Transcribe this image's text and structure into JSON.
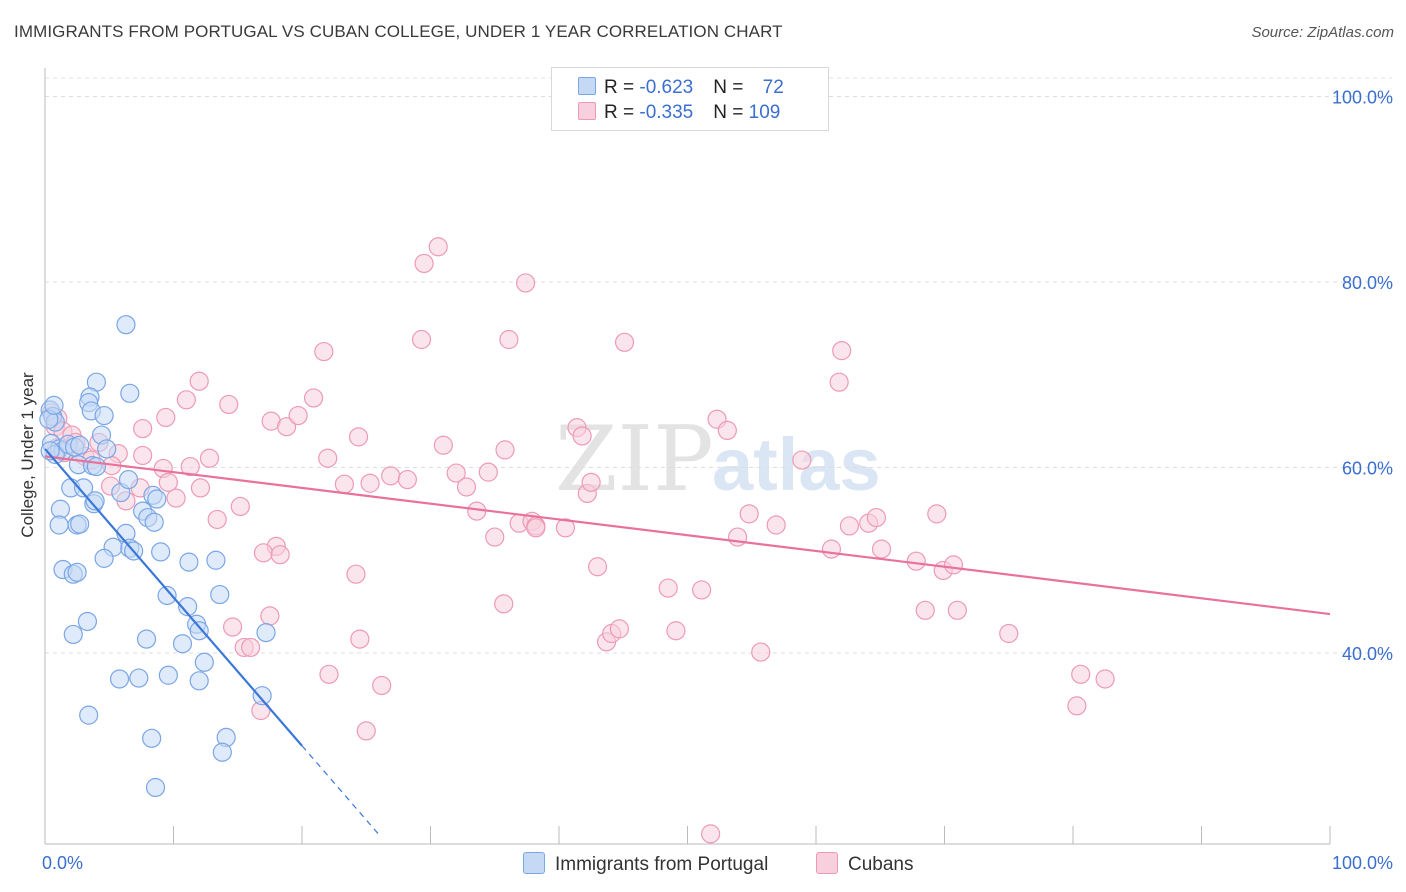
{
  "header": {
    "title": "IMMIGRANTS FROM PORTUGAL VS CUBAN COLLEGE, UNDER 1 YEAR CORRELATION CHART",
    "source": "Source: ZipAtlas.com"
  },
  "watermark": {
    "zip": "ZIP",
    "atlas": "atlas"
  },
  "legend_top": {
    "rows": [
      {
        "r_label": "R = ",
        "r_value": "-0.623",
        "n_label": "N = ",
        "n_value": "72"
      },
      {
        "r_label": "R = ",
        "r_value": "-0.335",
        "n_label": "N = ",
        "n_value": "109"
      }
    ]
  },
  "colors": {
    "portugal_fill": "#c5d9f5",
    "portugal_stroke": "#7aa6e6",
    "portugal_line": "#3b78d8",
    "cuban_fill": "#f8cfdc",
    "cuban_stroke": "#ee9ab5",
    "cuban_line": "#e8729a",
    "axis_value": "#3a6fd0",
    "grid": "#dddddd"
  },
  "chart_data": {
    "type": "scatter",
    "title": "IMMIGRANTS FROM PORTUGAL VS CUBAN COLLEGE, UNDER 1 YEAR CORRELATION CHART",
    "xlabel": "",
    "ylabel": "College, Under 1 year",
    "xlim": [
      0,
      100
    ],
    "ylim": [
      20,
      102
    ],
    "x_tick_labels": [
      "0.0%",
      "100.0%"
    ],
    "y_ticks": [
      {
        "value": 100,
        "label": "100.0%"
      },
      {
        "value": 80,
        "label": "80.0%"
      },
      {
        "value": 60,
        "label": "60.0%"
      },
      {
        "value": 40,
        "label": "40.0%"
      }
    ],
    "legend": [
      "Immigrants from Portugal",
      "Cubans"
    ],
    "series": [
      {
        "name": "Immigrants from Portugal",
        "r": -0.623,
        "n": 72,
        "trend": {
          "x0": 0,
          "y0": 62.0,
          "x1": 20,
          "y1": 30.0,
          "dash_to_x": 26
        },
        "points": [
          [
            0.4,
            66.2
          ],
          [
            0.6,
            65.5
          ],
          [
            0.8,
            64.9
          ],
          [
            0.5,
            62.6
          ],
          [
            1.1,
            62.0
          ],
          [
            1.4,
            61.8
          ],
          [
            0.8,
            61.4
          ],
          [
            1.8,
            62.5
          ],
          [
            2.3,
            62.2
          ],
          [
            2.6,
            60.3
          ],
          [
            3.7,
            60.2
          ],
          [
            4.0,
            60.1
          ],
          [
            2.0,
            57.8
          ],
          [
            3.0,
            57.8
          ],
          [
            5.9,
            57.3
          ],
          [
            3.8,
            56.1
          ],
          [
            3.9,
            56.4
          ],
          [
            6.5,
            58.7
          ],
          [
            8.4,
            57.0
          ],
          [
            8.7,
            56.6
          ],
          [
            7.6,
            55.3
          ],
          [
            1.2,
            55.5
          ],
          [
            8.0,
            54.6
          ],
          [
            8.5,
            54.1
          ],
          [
            1.1,
            53.8
          ],
          [
            2.5,
            53.8
          ],
          [
            2.7,
            53.9
          ],
          [
            6.3,
            52.9
          ],
          [
            5.3,
            51.4
          ],
          [
            6.6,
            51.3
          ],
          [
            6.9,
            51.0
          ],
          [
            9.0,
            50.9
          ],
          [
            4.6,
            50.2
          ],
          [
            11.2,
            49.8
          ],
          [
            13.3,
            50.0
          ],
          [
            1.4,
            49.0
          ],
          [
            2.2,
            48.5
          ],
          [
            2.5,
            48.7
          ],
          [
            9.5,
            46.2
          ],
          [
            13.6,
            46.3
          ],
          [
            11.1,
            45.0
          ],
          [
            3.3,
            43.4
          ],
          [
            11.8,
            43.1
          ],
          [
            12.0,
            42.4
          ],
          [
            17.2,
            42.2
          ],
          [
            2.2,
            42.0
          ],
          [
            7.9,
            41.5
          ],
          [
            10.7,
            41.0
          ],
          [
            12.4,
            39.0
          ],
          [
            9.6,
            37.6
          ],
          [
            12.0,
            37.0
          ],
          [
            5.8,
            37.2
          ],
          [
            7.3,
            37.3
          ],
          [
            16.9,
            35.4
          ],
          [
            3.4,
            33.3
          ],
          [
            8.3,
            30.8
          ],
          [
            14.1,
            30.9
          ],
          [
            13.8,
            29.3
          ],
          [
            8.6,
            25.5
          ],
          [
            6.3,
            75.4
          ],
          [
            6.6,
            68.0
          ],
          [
            4.0,
            69.2
          ],
          [
            3.5,
            67.6
          ],
          [
            3.4,
            67.0
          ],
          [
            3.6,
            66.1
          ],
          [
            4.6,
            65.6
          ],
          [
            0.3,
            65.2
          ],
          [
            0.7,
            66.7
          ],
          [
            0.4,
            61.8
          ],
          [
            2.7,
            62.4
          ],
          [
            4.4,
            63.5
          ],
          [
            4.8,
            62.0
          ]
        ]
      },
      {
        "name": "Cubans",
        "r": -0.335,
        "n": 109,
        "trend": {
          "x0": 0,
          "y0": 61.2,
          "x1": 100,
          "y1": 44.2
        },
        "points": [
          [
            0.5,
            65.9
          ],
          [
            1.0,
            65.3
          ],
          [
            0.8,
            64.4
          ],
          [
            1.4,
            63.9
          ],
          [
            2.1,
            63.5
          ],
          [
            2.4,
            62.7
          ],
          [
            4.2,
            62.7
          ],
          [
            0.9,
            62.1
          ],
          [
            1.5,
            61.6
          ],
          [
            3.1,
            61.2
          ],
          [
            5.7,
            61.5
          ],
          [
            3.6,
            60.8
          ],
          [
            5.2,
            60.2
          ],
          [
            7.6,
            61.3
          ],
          [
            9.2,
            59.9
          ],
          [
            11.3,
            60.1
          ],
          [
            12.8,
            61.0
          ],
          [
            5.1,
            58.0
          ],
          [
            7.4,
            57.8
          ],
          [
            9.6,
            58.4
          ],
          [
            12.1,
            57.8
          ],
          [
            10.2,
            56.7
          ],
          [
            6.3,
            56.4
          ],
          [
            15.2,
            55.8
          ],
          [
            13.4,
            54.4
          ],
          [
            7.6,
            64.2
          ],
          [
            9.4,
            65.4
          ],
          [
            11.0,
            67.3
          ],
          [
            12.0,
            69.3
          ],
          [
            14.3,
            66.8
          ],
          [
            17.6,
            65.0
          ],
          [
            18.8,
            64.4
          ],
          [
            19.7,
            65.6
          ],
          [
            20.9,
            67.5
          ],
          [
            21.7,
            72.5
          ],
          [
            22.0,
            61.0
          ],
          [
            23.3,
            58.2
          ],
          [
            24.4,
            63.3
          ],
          [
            25.3,
            58.3
          ],
          [
            26.9,
            59.1
          ],
          [
            28.2,
            58.7
          ],
          [
            29.3,
            73.8
          ],
          [
            29.5,
            82.0
          ],
          [
            30.6,
            83.8
          ],
          [
            31.0,
            62.4
          ],
          [
            32.0,
            59.4
          ],
          [
            32.8,
            57.9
          ],
          [
            33.6,
            55.3
          ],
          [
            34.5,
            59.5
          ],
          [
            35.0,
            52.5
          ],
          [
            35.7,
            45.3
          ],
          [
            35.8,
            61.9
          ],
          [
            36.1,
            73.8
          ],
          [
            36.9,
            54.0
          ],
          [
            37.4,
            79.9
          ],
          [
            37.9,
            54.2
          ],
          [
            38.2,
            53.7
          ],
          [
            40.5,
            53.5
          ],
          [
            41.4,
            64.3
          ],
          [
            41.8,
            63.4
          ],
          [
            42.2,
            57.2
          ],
          [
            42.5,
            58.4
          ],
          [
            43.0,
            49.3
          ],
          [
            43.7,
            41.2
          ],
          [
            44.1,
            42.1
          ],
          [
            44.7,
            42.6
          ],
          [
            45.1,
            73.5
          ],
          [
            48.5,
            47.0
          ],
          [
            49.1,
            42.4
          ],
          [
            51.1,
            46.8
          ],
          [
            51.8,
            20.5
          ],
          [
            52.3,
            65.2
          ],
          [
            53.1,
            64.0
          ],
          [
            53.9,
            52.5
          ],
          [
            54.8,
            55.0
          ],
          [
            55.7,
            40.1
          ],
          [
            56.9,
            53.8
          ],
          [
            58.9,
            60.8
          ],
          [
            61.2,
            51.2
          ],
          [
            61.8,
            69.2
          ],
          [
            62.0,
            72.6
          ],
          [
            62.6,
            53.7
          ],
          [
            64.1,
            54.0
          ],
          [
            64.7,
            54.6
          ],
          [
            65.1,
            51.2
          ],
          [
            67.8,
            49.9
          ],
          [
            68.5,
            44.6
          ],
          [
            69.4,
            55.0
          ],
          [
            69.9,
            48.9
          ],
          [
            70.7,
            49.5
          ],
          [
            71.0,
            44.6
          ],
          [
            75.0,
            42.1
          ],
          [
            80.6,
            37.7
          ],
          [
            80.3,
            34.3
          ],
          [
            82.5,
            37.2
          ],
          [
            18.0,
            51.5
          ],
          [
            17.0,
            50.8
          ],
          [
            18.3,
            50.6
          ],
          [
            17.5,
            44.0
          ],
          [
            14.6,
            42.8
          ],
          [
            15.5,
            40.6
          ],
          [
            16.0,
            40.6
          ],
          [
            16.8,
            33.8
          ],
          [
            22.1,
            37.7
          ],
          [
            24.2,
            48.5
          ],
          [
            24.5,
            41.5
          ],
          [
            25.0,
            31.6
          ],
          [
            26.2,
            36.5
          ],
          [
            38.2,
            53.5
          ]
        ]
      }
    ]
  }
}
